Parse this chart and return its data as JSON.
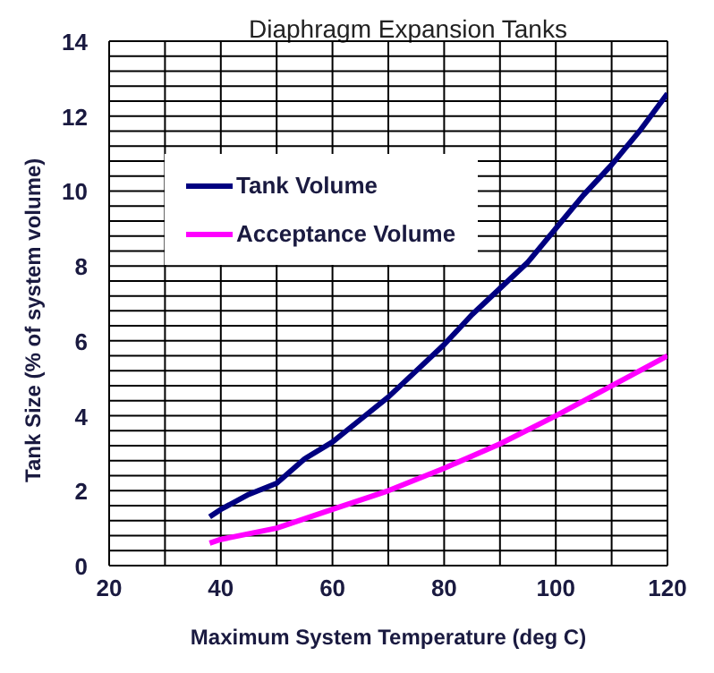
{
  "chart_data": {
    "type": "line",
    "title": "Diaphragm Expansion Tanks",
    "xlabel": "Maximum  System Temperature (deg C)",
    "ylabel": "Tank Size (%  of system volume)",
    "xlim": [
      20,
      120
    ],
    "xticks": [
      20,
      {
        "value": 30,
        "label": null
      },
      40,
      {
        "value": 50,
        "label": null
      },
      60,
      {
        "value": 70,
        "label": null
      },
      80,
      {
        "value": 90,
        "label": null
      },
      100,
      {
        "value": 110,
        "label": null
      },
      120
    ],
    "ylim": [
      0,
      14
    ],
    "yticks": [
      0,
      {
        "value": 0.4,
        "label": null
      },
      {
        "value": 0.8,
        "label": null
      },
      {
        "value": 1.2,
        "label": null
      },
      {
        "value": 1.6,
        "label": null
      },
      2,
      {
        "value": 2.4,
        "label": null
      },
      {
        "value": 2.8,
        "label": null
      },
      {
        "value": 3.2,
        "label": null
      },
      {
        "value": 3.6,
        "label": null
      },
      4,
      {
        "value": 4.4,
        "label": null
      },
      {
        "value": 4.8,
        "label": null
      },
      {
        "value": 5.2,
        "label": null
      },
      {
        "value": 5.6,
        "label": null
      },
      6,
      {
        "value": 6.4,
        "label": null
      },
      {
        "value": 6.8,
        "label": null
      },
      {
        "value": 7.2,
        "label": null
      },
      {
        "value": 7.6,
        "label": null
      },
      8,
      {
        "value": 8.4,
        "label": null
      },
      {
        "value": 8.8,
        "label": null
      },
      {
        "value": 9.2,
        "label": null
      },
      {
        "value": 9.6,
        "label": null
      },
      10,
      {
        "value": 10.4,
        "label": null
      },
      {
        "value": 10.8,
        "label": null
      },
      {
        "value": 11.2,
        "label": null
      },
      {
        "value": 11.6,
        "label": null
      },
      12,
      {
        "value": 12.4,
        "label": null
      },
      {
        "value": 12.8,
        "label": null
      },
      {
        "value": 13.2,
        "label": null
      },
      {
        "value": 13.6,
        "label": null
      },
      14
    ],
    "grid": true,
    "legend": "top left",
    "marker": "none",
    "line_style": "solid",
    "series": [
      {
        "name": "Tank Volume",
        "color": "#000080",
        "x": [
          38,
          40,
          45,
          50,
          55,
          60,
          65,
          70,
          75,
          80,
          85,
          90,
          95,
          100,
          105,
          110,
          115,
          120
        ],
        "values": [
          1.3,
          1.5,
          1.9,
          2.2,
          2.85,
          3.3,
          3.9,
          4.5,
          5.2,
          5.9,
          6.7,
          7.4,
          8.1,
          9.0,
          9.9,
          10.7,
          11.6,
          12.6
        ]
      },
      {
        "name": "Acceptance Volume",
        "color": "#ff00ff",
        "x": [
          38,
          40,
          50,
          60,
          70,
          80,
          90,
          100,
          110,
          120
        ],
        "values": [
          0.6,
          0.7,
          1.0,
          1.5,
          2.0,
          2.6,
          3.25,
          4.0,
          4.8,
          5.6
        ]
      }
    ]
  }
}
